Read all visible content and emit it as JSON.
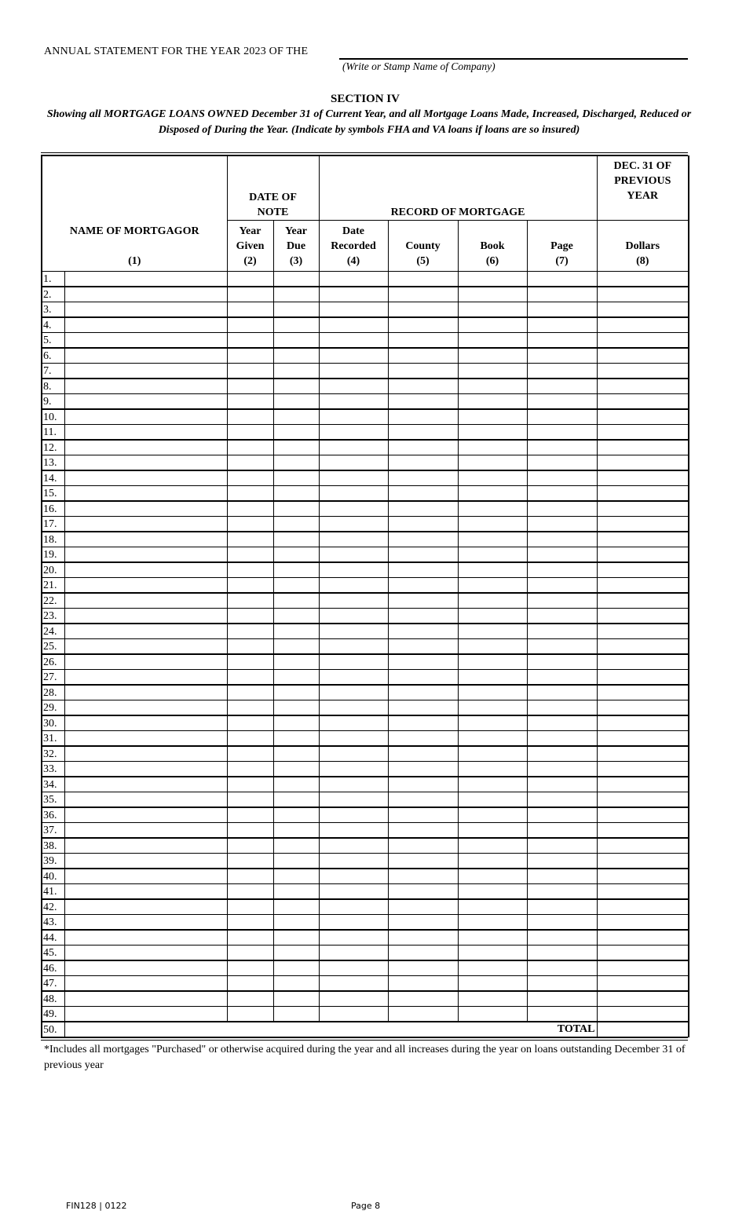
{
  "header": {
    "annual_statement": "ANNUAL STATEMENT FOR THE YEAR 2023 OF THE",
    "company_hint": "(Write or Stamp Name of Company)",
    "section": "SECTION IV",
    "description": "Showing all MORTGAGE LOANS OWNED December 31 of Current Year, and all Mortgage Loans Made, Increased, Discharged, Reduced or Disposed of During the Year.  (Indicate by symbols FHA and VA loans if loans are so insured)"
  },
  "table": {
    "group_headers": {
      "date_of_note": "DATE OF NOTE",
      "record_of_mortgage": "RECORD OF MORTGAGE",
      "dec31": "DEC. 31 OF PREVIOUS YEAR"
    },
    "columns": [
      {
        "label": "NAME OF MORTGAGOR",
        "num": "(1)"
      },
      {
        "label": "Year Given",
        "num": "(2)"
      },
      {
        "label": "Year Due",
        "num": "(3)"
      },
      {
        "label": "Date Recorded",
        "num": "(4)"
      },
      {
        "label": "County",
        "num": "(5)"
      },
      {
        "label": "Book",
        "num": "(6)"
      },
      {
        "label": "Page",
        "num": "(7)"
      },
      {
        "label": "Dollars",
        "num": "(8)"
      }
    ],
    "row_count": 50,
    "total_label": "TOTAL"
  },
  "footnote": "*Includes all mortgages \"Purchased\" or otherwise acquired during the year and all increases during the year on loans outstanding December 31 of previous year",
  "footer": {
    "form_id": "FIN128 | 0122",
    "page": "Page 8"
  }
}
